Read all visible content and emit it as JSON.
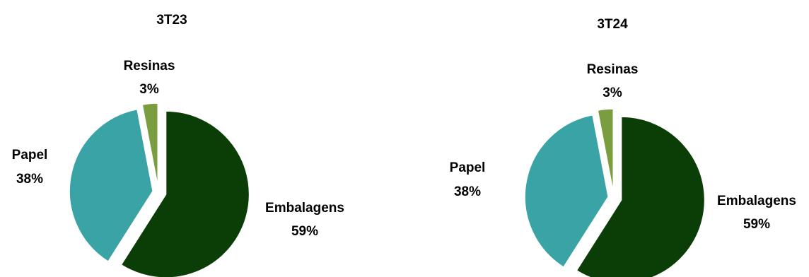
{
  "chart_data": [
    {
      "type": "pie",
      "title": "3T23",
      "categories": [
        "Embalagens",
        "Papel",
        "Resinas"
      ],
      "values": [
        59,
        38,
        3
      ],
      "value_labels": [
        "59%",
        "38%",
        "3%"
      ],
      "colors": [
        "#0b3d06",
        "#3aa3a6",
        "#7a9e3f"
      ],
      "exploded": true,
      "legend": "none"
    },
    {
      "type": "pie",
      "title": "3T24",
      "categories": [
        "Embalagens",
        "Papel",
        "Resinas"
      ],
      "values": [
        59,
        38,
        3
      ],
      "value_labels": [
        "59%",
        "38%",
        "3%"
      ],
      "colors": [
        "#0b3d06",
        "#3aa3a6",
        "#7a9e3f"
      ],
      "exploded": true,
      "legend": "none"
    }
  ]
}
